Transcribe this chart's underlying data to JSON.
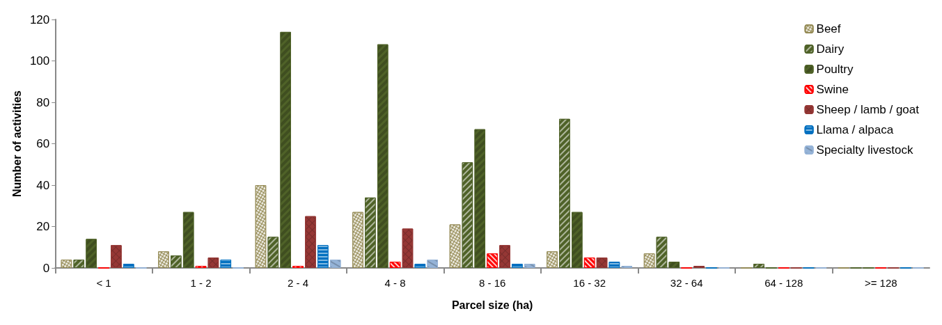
{
  "chart_data": {
    "type": "bar",
    "xlabel": "Parcel size (ha)",
    "ylabel": "Number of activities",
    "categories": [
      "< 1",
      "1 - 2",
      "2 - 4",
      "4 - 8",
      "8 - 16",
      "16 - 32",
      "32 - 64",
      "64 - 128",
      ">= 128"
    ],
    "series": [
      {
        "name": "Beef",
        "color": "#948a54",
        "values": [
          4,
          8,
          40,
          27,
          21,
          8,
          7,
          0,
          0
        ]
      },
      {
        "name": "Dairy",
        "color": "#4f6228",
        "values": [
          4,
          6,
          15,
          34,
          51,
          72,
          15,
          2,
          0
        ]
      },
      {
        "name": "Poultry",
        "color": "#4f6228",
        "values": [
          14,
          27,
          114,
          108,
          67,
          27,
          3,
          0,
          0
        ]
      },
      {
        "name": "Swine",
        "color": "#ff0000",
        "values": [
          0,
          1,
          1,
          3,
          7,
          5,
          0,
          0,
          0
        ]
      },
      {
        "name": "Sheep / lamb / goat",
        "color": "#953735",
        "values": [
          11,
          5,
          25,
          19,
          11,
          5,
          1,
          0,
          0
        ]
      },
      {
        "name": "Llama / alpaca",
        "color": "#0070c0",
        "values": [
          2,
          4,
          11,
          2,
          2,
          3,
          0,
          0,
          0
        ]
      },
      {
        "name": "Specialty livestock",
        "color": "#95b3d7",
        "values": [
          0,
          0,
          4,
          4,
          2,
          1,
          0,
          0,
          0
        ]
      }
    ],
    "ylim": [
      0,
      120
    ],
    "yticks": [
      0,
      20,
      40,
      60,
      80,
      100,
      120
    ],
    "grid": false,
    "legend": "top right"
  }
}
